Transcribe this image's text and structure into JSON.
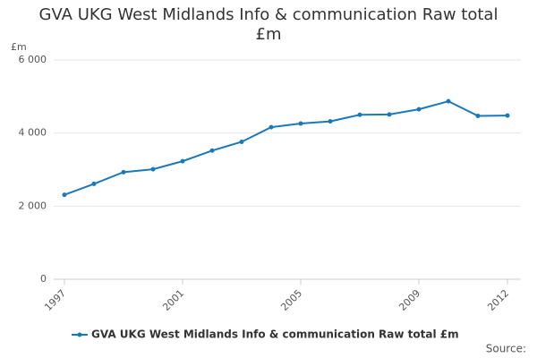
{
  "chart_data": {
    "type": "line",
    "title": "GVA UKG West Midlands Info & communication Raw total £m",
    "y_unit": "£m",
    "source": "Source:",
    "x": [
      1997,
      1998,
      1999,
      2000,
      2001,
      2002,
      2003,
      2004,
      2005,
      2006,
      2007,
      2008,
      2009,
      2010,
      2011,
      2012
    ],
    "series": [
      {
        "name": "GVA UKG West Midlands Info & communication Raw total £m",
        "color": "#1a7ab8",
        "values": [
          2310,
          2610,
          2930,
          3010,
          3230,
          3520,
          3760,
          4160,
          4260,
          4320,
          4500,
          4510,
          4650,
          4870,
          4470,
          4480
        ]
      }
    ],
    "xlim": [
      1997,
      2012
    ],
    "xticks": [
      1997,
      2001,
      2005,
      2009,
      2012
    ],
    "ylim": [
      0,
      6000
    ],
    "yticks": [
      0,
      {
        "value": 2000,
        "label": "2 000"
      },
      {
        "value": 4000,
        "label": "4 000"
      },
      {
        "value": 6000,
        "label": "6 000"
      }
    ],
    "grid": true
  }
}
